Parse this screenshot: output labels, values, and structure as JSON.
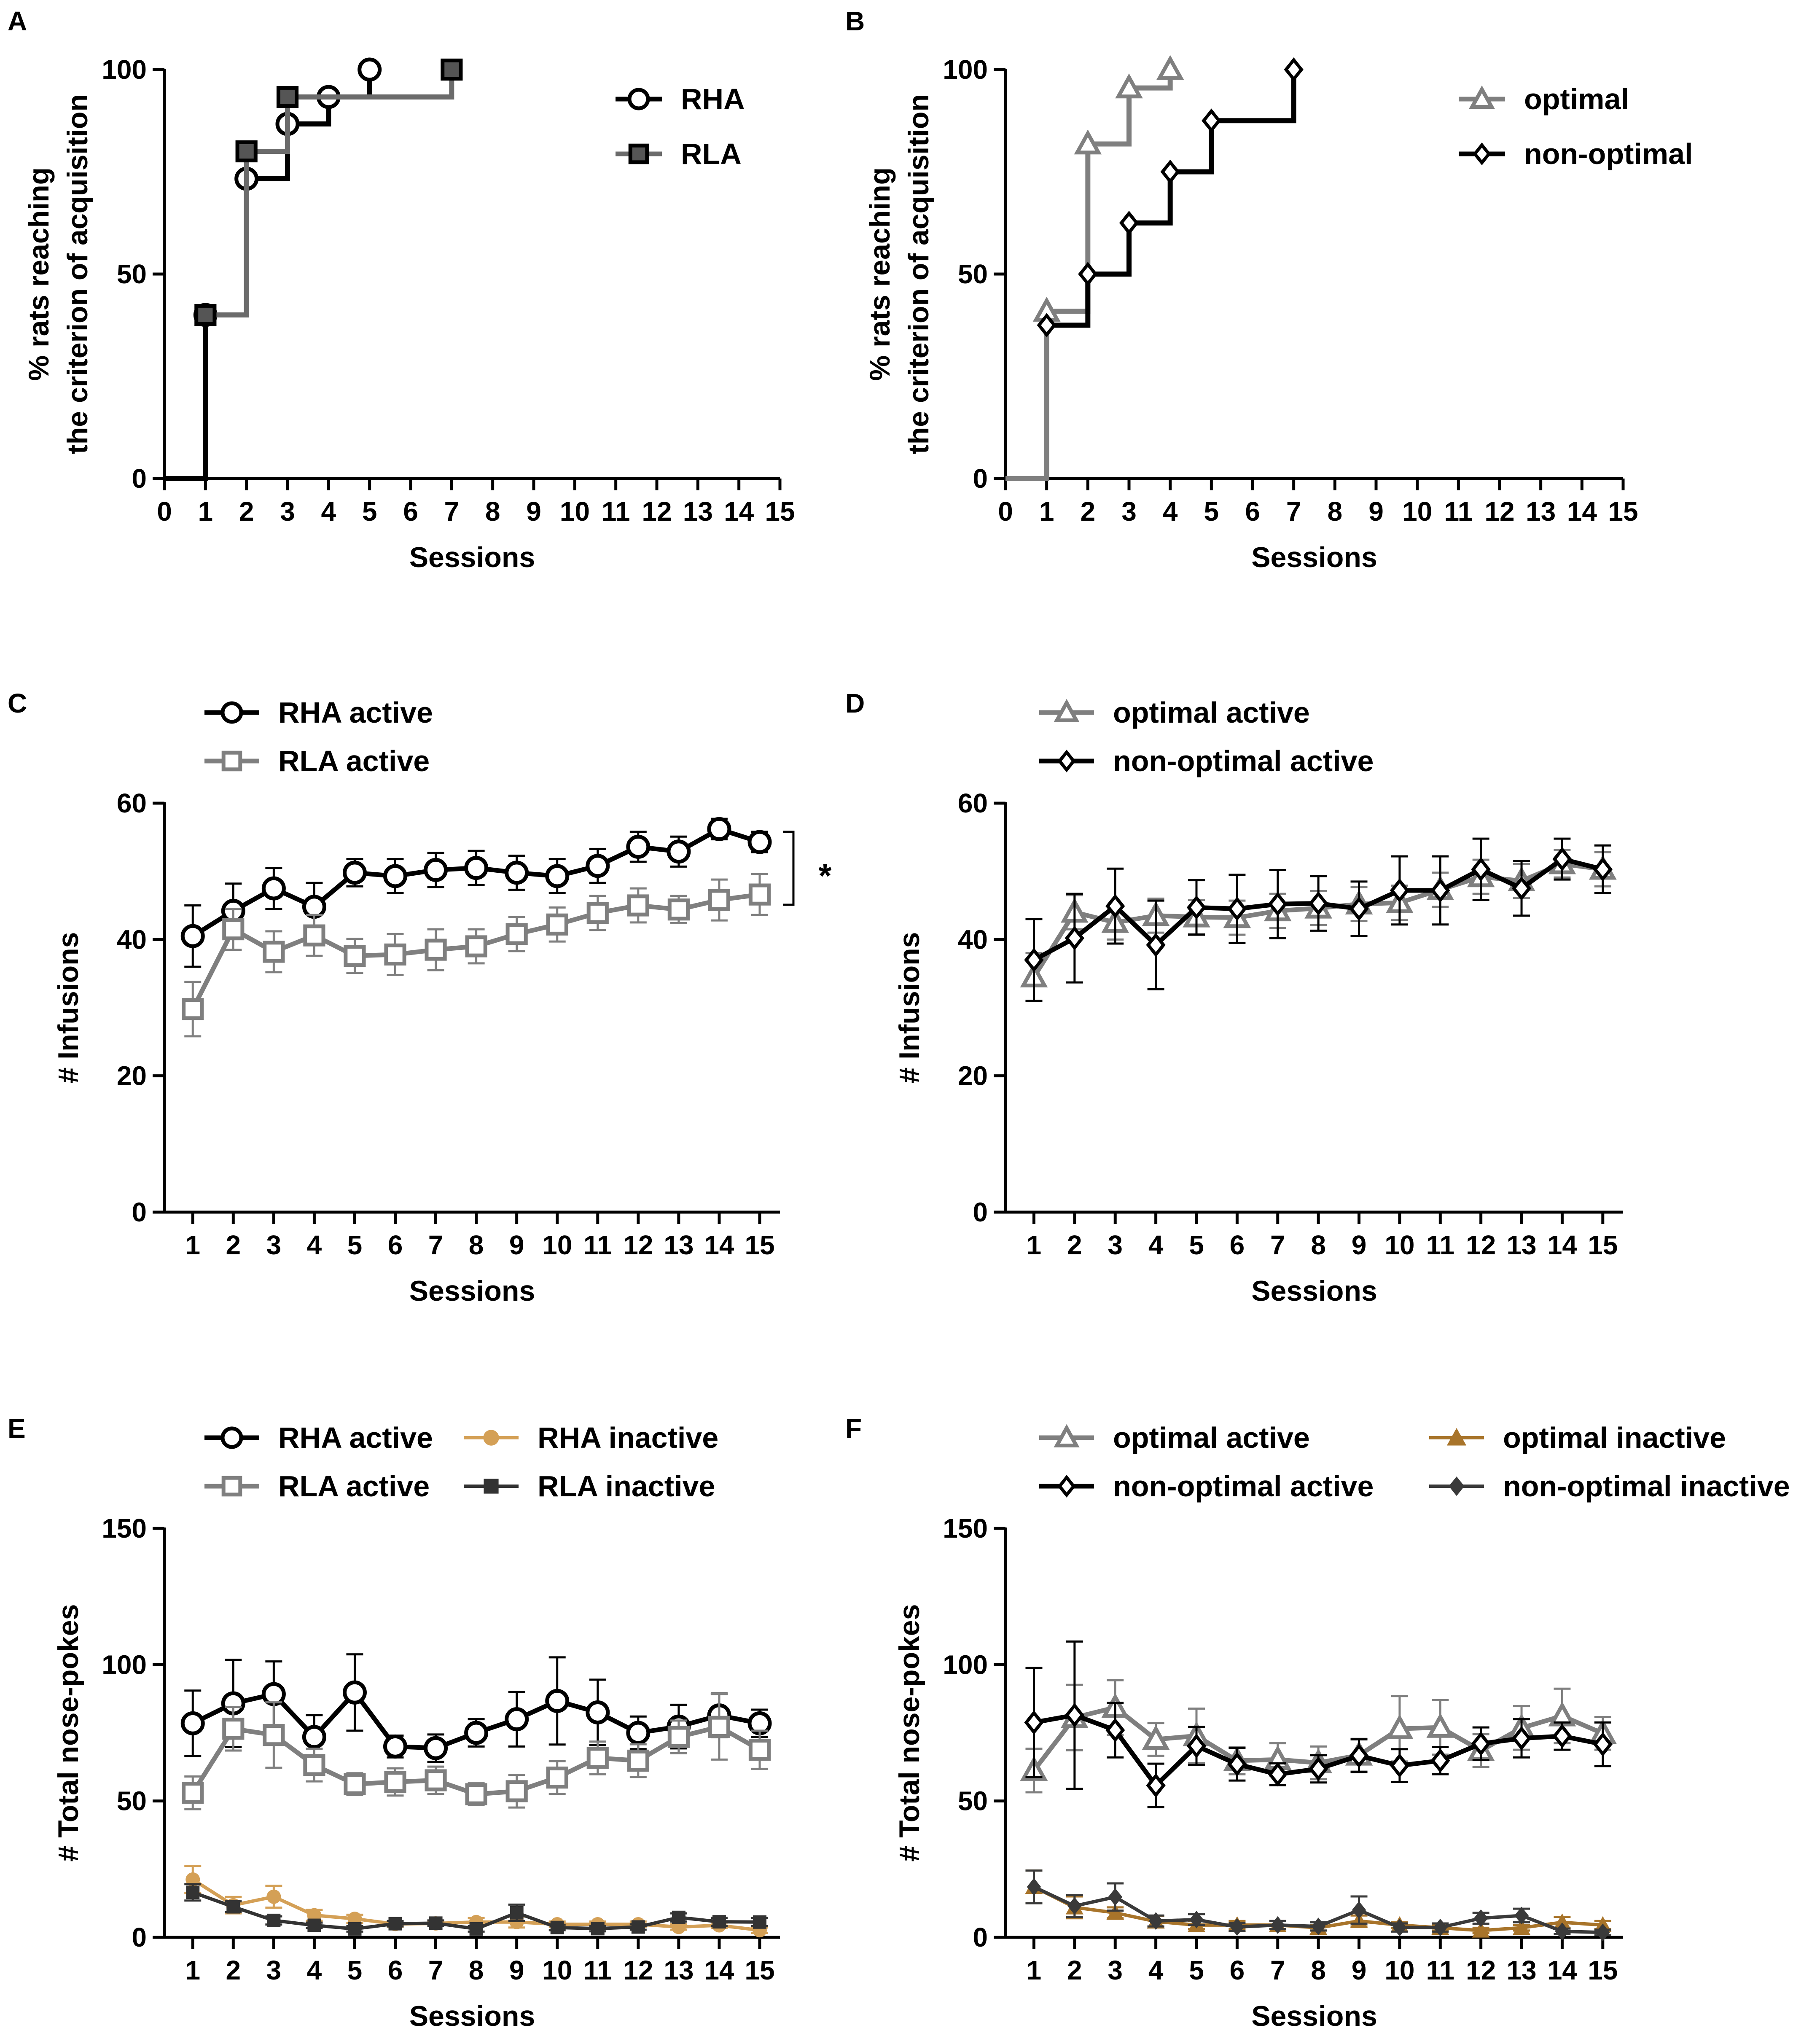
{
  "chart_data": [
    {
      "panel": "A",
      "type": "step",
      "xlabel": "Sessions",
      "ylabel": [
        "% rats reaching",
        "the criterion of acquisition"
      ],
      "xlim": [
        0,
        15
      ],
      "ylim": [
        0,
        100
      ],
      "xticks": [
        0,
        1,
        2,
        3,
        4,
        5,
        6,
        7,
        8,
        9,
        10,
        11,
        12,
        13,
        14,
        15
      ],
      "yticks": [
        0,
        50,
        100
      ],
      "series": [
        {
          "name": "RHA",
          "color": "#000000",
          "marker": "circle",
          "fill": "#ffffff",
          "x": [
            0,
            1,
            2,
            3,
            4,
            5
          ],
          "y": [
            0,
            40,
            73.3,
            86.7,
            93.3,
            100
          ]
        },
        {
          "name": "RLA",
          "color": "#6b6b6b",
          "marker": "square",
          "fill": "#555555",
          "x": [
            1,
            2,
            3,
            7
          ],
          "y": [
            40,
            80,
            93.3,
            100
          ]
        }
      ]
    },
    {
      "panel": "B",
      "type": "step",
      "xlabel": "Sessions",
      "ylabel": [
        "% rats reaching",
        "the criterion of acquisition"
      ],
      "xlim": [
        0,
        15
      ],
      "ylim": [
        0,
        100
      ],
      "xticks": [
        0,
        1,
        2,
        3,
        4,
        5,
        6,
        7,
        8,
        9,
        10,
        11,
        12,
        13,
        14,
        15
      ],
      "yticks": [
        0,
        50,
        100
      ],
      "series": [
        {
          "name": "optimal",
          "color": "#7f7f7f",
          "marker": "triangle",
          "fill": "#ffffff",
          "x": [
            0,
            1,
            2,
            3,
            4
          ],
          "y": [
            0,
            40.9,
            81.8,
            95.5,
            100
          ]
        },
        {
          "name": "non-optimal",
          "color": "#000000",
          "marker": "diamond",
          "fill": "#ffffff",
          "x": [
            1,
            2,
            3,
            4,
            5,
            7
          ],
          "y": [
            37.5,
            50,
            62.5,
            75,
            87.5,
            100
          ]
        }
      ]
    },
    {
      "panel": "C",
      "type": "line",
      "xlabel": "Sessions",
      "ylabel": "# Infusions",
      "xlim": [
        0.3,
        15.5
      ],
      "ylim": [
        0,
        60
      ],
      "xticks": [
        1,
        2,
        3,
        4,
        5,
        6,
        7,
        8,
        9,
        10,
        11,
        12,
        13,
        14,
        15
      ],
      "yticks": [
        0,
        20,
        40,
        60
      ],
      "annotation": "*",
      "series": [
        {
          "name": "RHA active",
          "color": "#000000",
          "marker": "circle",
          "fill": "#ffffff",
          "values": [
            40.5,
            44.2,
            47.5,
            44.8,
            49.8,
            49.3,
            50.2,
            50.5,
            49.8,
            49.3,
            50.8,
            53.6,
            52.9,
            56.2,
            54.3
          ],
          "err": [
            4.5,
            4,
            3,
            3.5,
            2,
            2.5,
            2.5,
            2.5,
            2.5,
            2.5,
            2.5,
            2.2,
            2.2,
            1.5,
            1.5
          ]
        },
        {
          "name": "RLA active",
          "color": "#7f7f7f",
          "marker": "square",
          "fill": "#ffffff",
          "values": [
            29.8,
            41.5,
            38.2,
            40.6,
            37.6,
            37.8,
            38.5,
            39.0,
            40.8,
            42.2,
            43.9,
            45.0,
            44.4,
            45.8,
            46.6
          ],
          "err": [
            4,
            3,
            3,
            3,
            2.5,
            3,
            3,
            2.5,
            2.5,
            2.5,
            2.5,
            2.5,
            2,
            3,
            3
          ]
        }
      ]
    },
    {
      "panel": "D",
      "type": "line",
      "xlabel": "Sessions",
      "ylabel": "# Infusions",
      "xlim": [
        0.3,
        15.5
      ],
      "ylim": [
        0,
        60
      ],
      "xticks": [
        1,
        2,
        3,
        4,
        5,
        6,
        7,
        8,
        9,
        10,
        11,
        12,
        13,
        14,
        15
      ],
      "yticks": [
        0,
        20,
        40,
        60
      ],
      "series": [
        {
          "name": "optimal active",
          "color": "#7f7f7f",
          "marker": "triangle",
          "fill": "#ffffff",
          "values": [
            34.5,
            44.0,
            42.5,
            43.5,
            43.3,
            43.2,
            44.2,
            44.6,
            45.2,
            45.4,
            47.3,
            49.2,
            48.6,
            51.1,
            50.3
          ],
          "err": [
            3.5,
            2.5,
            2.5,
            2.5,
            2.5,
            2.5,
            2.5,
            2.5,
            2.5,
            2.5,
            2.5,
            2.5,
            2.5,
            2,
            2.5
          ]
        },
        {
          "name": "non-optimal active",
          "color": "#000000",
          "marker": "diamond",
          "fill": "#ffffff",
          "values": [
            37.0,
            40.2,
            44.9,
            39.2,
            44.7,
            44.5,
            45.2,
            45.3,
            44.5,
            47.2,
            47.2,
            50.3,
            47.5,
            51.8,
            50.3
          ],
          "err": [
            6,
            6.5,
            5.5,
            6.5,
            4,
            5,
            5,
            4,
            4,
            5,
            5,
            4.5,
            4,
            3,
            3.5
          ]
        }
      ]
    },
    {
      "panel": "E",
      "type": "line",
      "xlabel": "Sessions",
      "ylabel": "# Total nose-pokes",
      "xlim": [
        0.3,
        15.5
      ],
      "ylim": [
        0,
        150
      ],
      "xticks": [
        1,
        2,
        3,
        4,
        5,
        6,
        7,
        8,
        9,
        10,
        11,
        12,
        13,
        14,
        15
      ],
      "yticks": [
        0,
        50,
        100,
        150
      ],
      "series": [
        {
          "name": "RHA active",
          "color": "#000000",
          "marker": "circle",
          "fill": "#ffffff",
          "values": [
            78.5,
            85.8,
            89.2,
            73.5,
            89.8,
            70.0,
            69.4,
            75.0,
            80.0,
            86.7,
            82.5,
            75.0,
            77.3,
            81.4,
            78.5
          ],
          "err": [
            12,
            16,
            12,
            8,
            14,
            4,
            5,
            5,
            10,
            16,
            12,
            6,
            8,
            8,
            5
          ]
        },
        {
          "name": "RLA active",
          "color": "#7f7f7f",
          "marker": "square",
          "fill": "#ffffff",
          "values": [
            53.0,
            76.5,
            74.2,
            63.2,
            56.2,
            57.0,
            57.6,
            52.5,
            53.6,
            58.6,
            65.8,
            64.8,
            73.5,
            77.2,
            68.8
          ],
          "err": [
            6,
            8,
            12,
            6,
            4,
            5,
            5,
            4,
            6,
            6,
            6,
            6,
            6,
            12,
            7
          ]
        },
        {
          "name": "RHA inactive",
          "color": "#d4a056",
          "marker": "dot",
          "fill": "#d4a056",
          "values": [
            21.2,
            11.8,
            14.9,
            8.1,
            6.8,
            4.9,
            5.1,
            5.6,
            5.6,
            4.8,
            4.8,
            4.8,
            3.8,
            4.4,
            2.6
          ],
          "err": [
            5,
            3,
            4,
            2,
            1.5,
            1,
            1,
            1.5,
            2,
            1,
            1,
            1,
            1,
            1,
            1
          ]
        },
        {
          "name": "RLA inactive",
          "color": "#333333",
          "marker": "sqfill",
          "fill": "#333333",
          "values": [
            16.5,
            11.2,
            6.2,
            4.4,
            3.1,
            5.0,
            5.2,
            3.1,
            9.0,
            3.6,
            3.2,
            3.8,
            7.3,
            5.7,
            5.6
          ],
          "err": [
            3,
            2,
            1.5,
            1,
            1,
            1,
            1,
            1,
            3,
            1,
            1,
            1,
            1.5,
            1.5,
            1.5
          ]
        }
      ]
    },
    {
      "panel": "F",
      "type": "line",
      "xlabel": "Sessions",
      "ylabel": "# Total nose-pokes",
      "xlim": [
        0.3,
        15.5
      ],
      "ylim": [
        0,
        150
      ],
      "xticks": [
        1,
        2,
        3,
        4,
        5,
        6,
        7,
        8,
        9,
        10,
        11,
        12,
        13,
        14,
        15
      ],
      "yticks": [
        0,
        50,
        100,
        150
      ],
      "series": [
        {
          "name": "optimal active",
          "color": "#7f7f7f",
          "marker": "triangle",
          "fill": "#ffffff",
          "values": [
            61.2,
            80.6,
            84.3,
            72.6,
            73.9,
            64.8,
            65.2,
            64.0,
            66.8,
            76.5,
            77.0,
            68.5,
            76.8,
            81.2,
            74.8
          ],
          "err": [
            8,
            12,
            10,
            6,
            10,
            5,
            6,
            6,
            6,
            12,
            10,
            6,
            8,
            10,
            6
          ]
        },
        {
          "name": "non-optimal active",
          "color": "#000000",
          "marker": "diamond",
          "fill": "#ffffff",
          "values": [
            78.8,
            81.5,
            76.0,
            55.7,
            70.2,
            63.5,
            59.8,
            61.8,
            66.6,
            63.0,
            64.8,
            71.0,
            73.0,
            73.8,
            70.8
          ],
          "err": [
            20,
            27,
            10,
            8,
            7,
            6,
            4,
            5,
            6,
            6,
            5,
            6,
            7,
            5,
            8
          ]
        },
        {
          "name": "optimal inactive",
          "color": "#a8742a",
          "marker": "tri-fill",
          "fill": "#a8742a",
          "values": [
            18.5,
            11.0,
            9.0,
            5.8,
            4.5,
            4.5,
            4.5,
            3.5,
            6.0,
            4.5,
            3.5,
            2.5,
            3.5,
            5.5,
            4.5
          ],
          "err": [
            6,
            4,
            2,
            2,
            1.5,
            1.5,
            1.5,
            1,
            2,
            1,
            1,
            1,
            1,
            2,
            1.5
          ]
        },
        {
          "name": "non-optimal inactive",
          "color": "#3a3a3a",
          "marker": "dia-fill",
          "fill": "#3a3a3a",
          "values": [
            18.5,
            11.5,
            14.8,
            6.0,
            6.5,
            3.8,
            4.5,
            4.0,
            10.0,
            3.6,
            3.6,
            7.0,
            8.0,
            2.2,
            1.8
          ],
          "err": [
            6,
            4,
            5,
            2,
            2,
            1.5,
            1.5,
            1.5,
            5,
            1.5,
            1.5,
            2,
            2.5,
            1,
            1
          ]
        }
      ]
    }
  ]
}
